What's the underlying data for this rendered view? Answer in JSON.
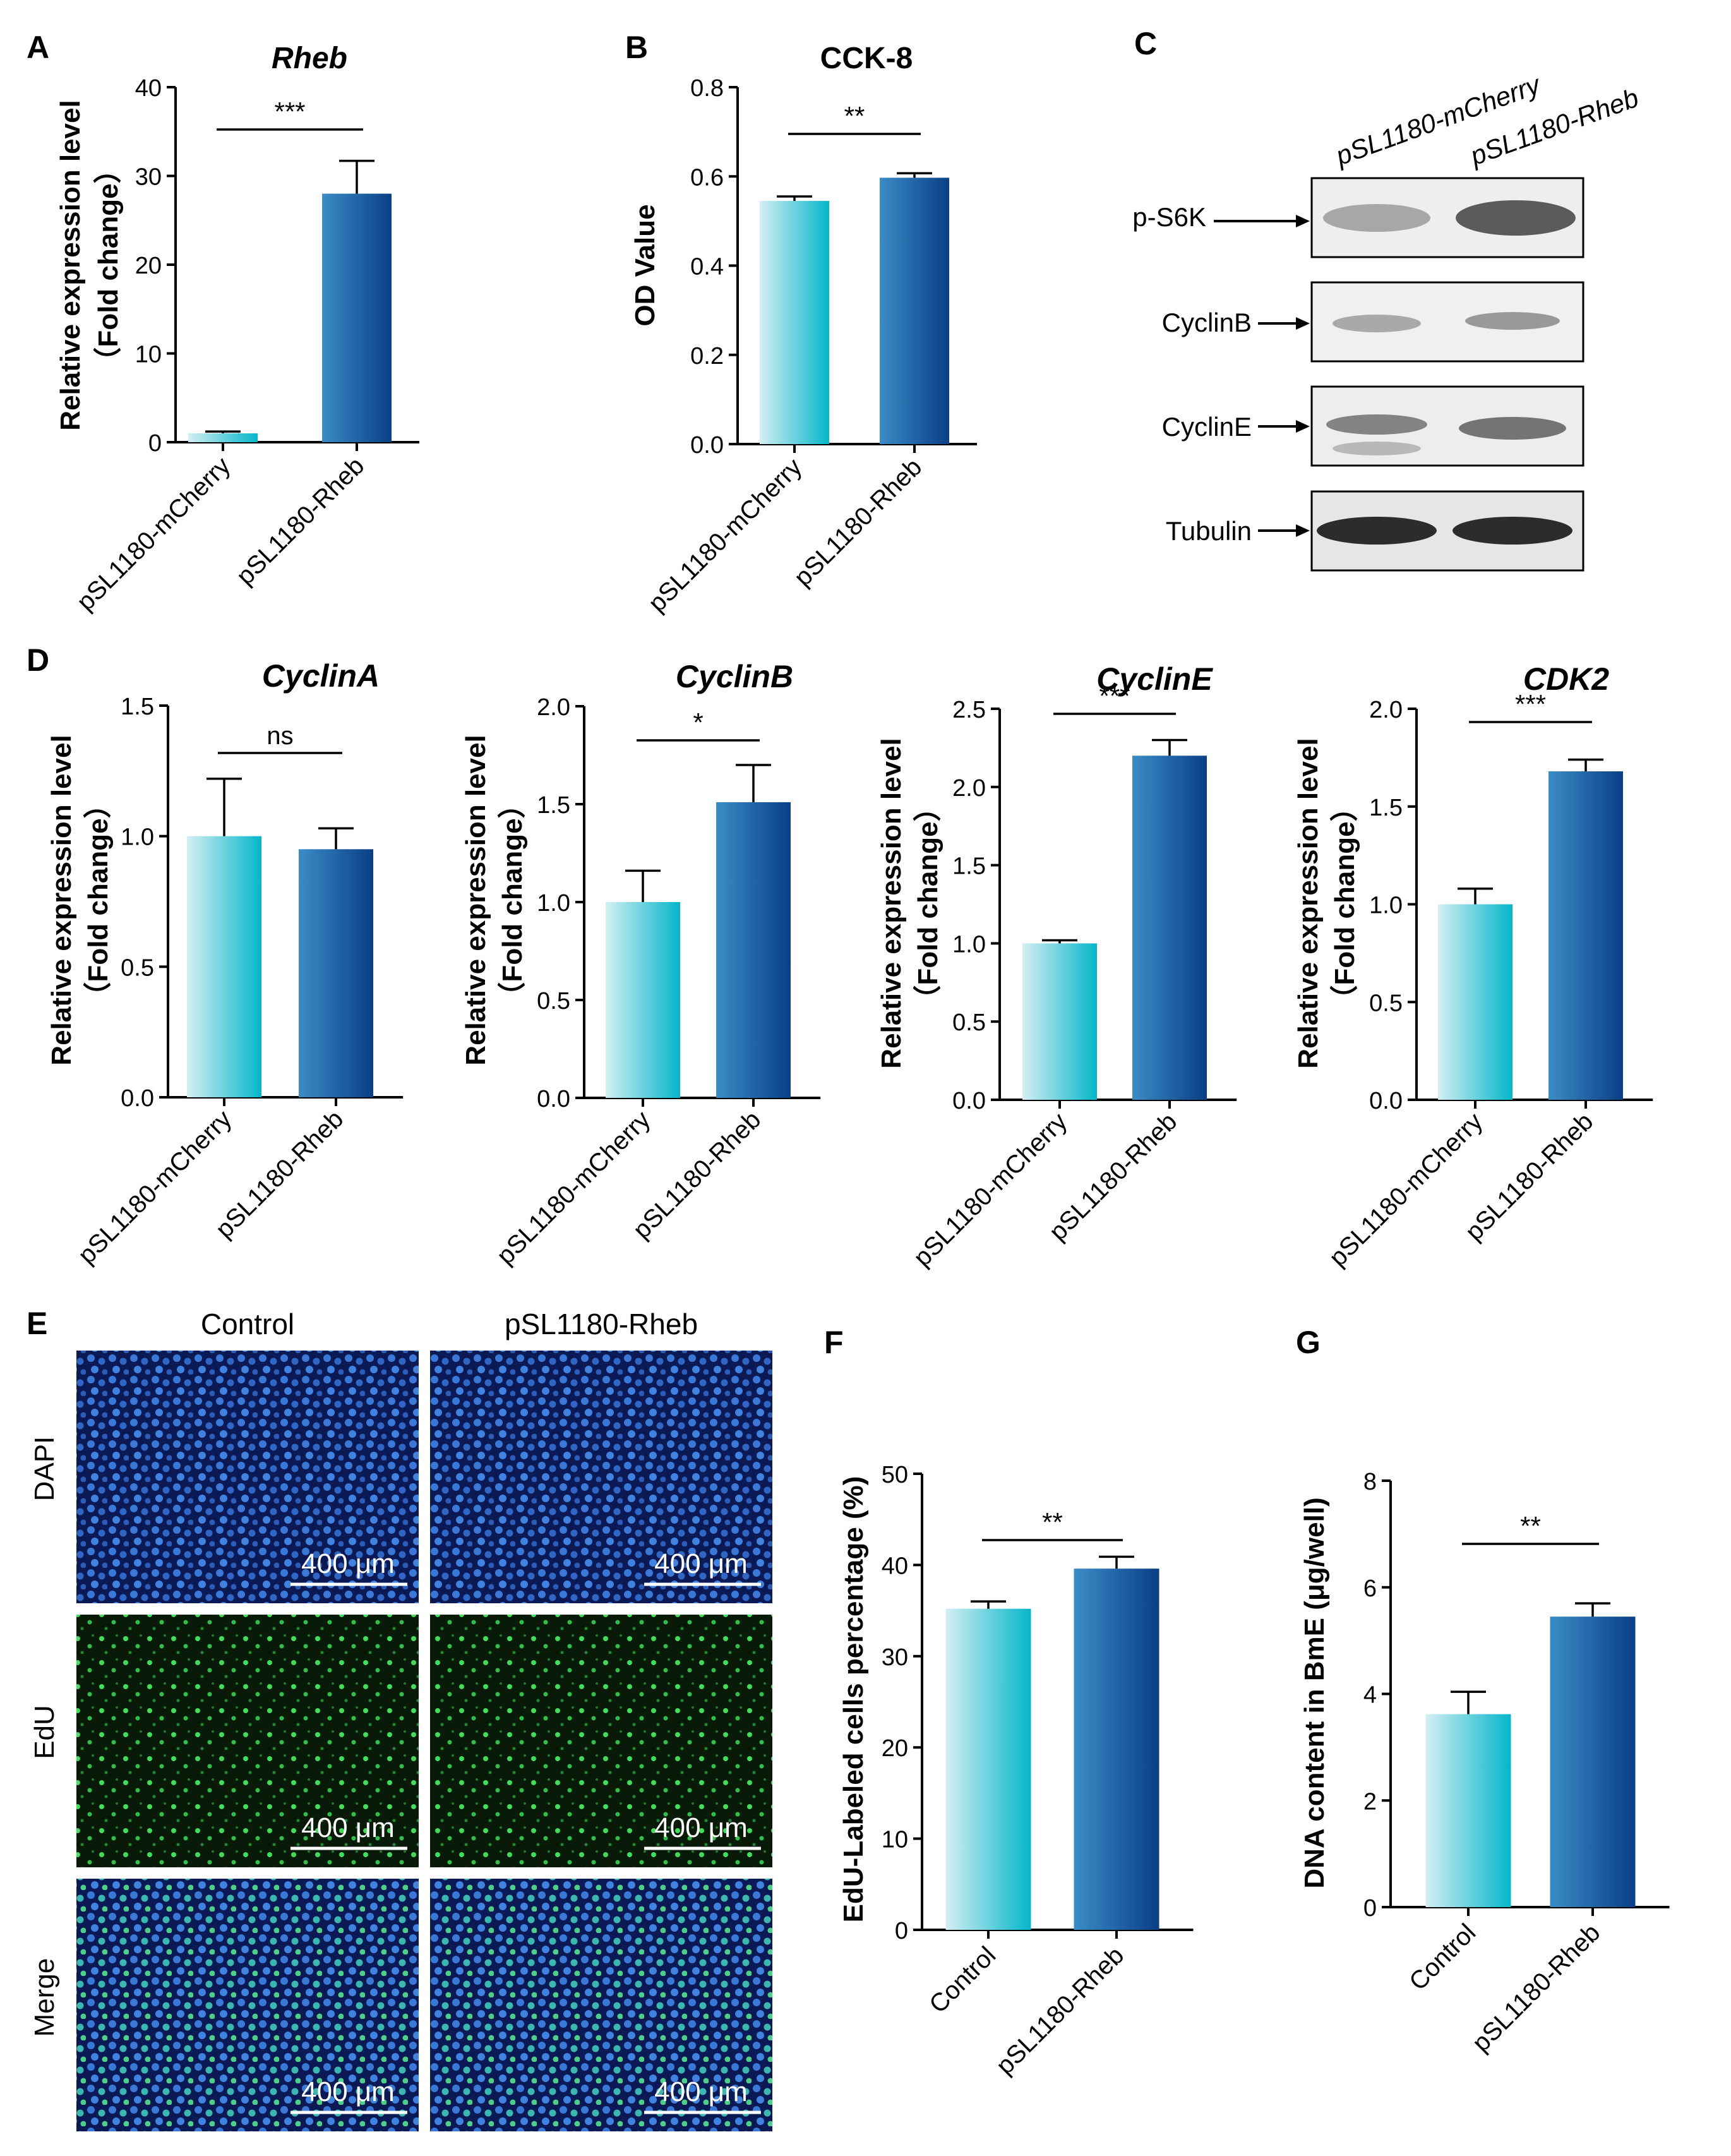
{
  "colors": {
    "light_bar_top": "#cdeef3",
    "light_bar_bottom": "#06b8cc",
    "dark_bar_top": "#2f82bd",
    "dark_bar_bottom": "#0a3f86",
    "axis": "#000000",
    "dapi_blue": "#2b66c4",
    "edu_green": "#2fd14a"
  },
  "panels": {
    "A": "A",
    "B": "B",
    "C": "C",
    "D": "D",
    "E": "E",
    "F": "F",
    "G": "G"
  },
  "chart_data": [
    {
      "id": "A",
      "type": "bar",
      "title": "Rheb",
      "ylabel": "Relative expression level",
      "ylabel2": "（Fold change）",
      "ylim": [
        0,
        40
      ],
      "ticks": [
        "0",
        "10",
        "20",
        "30",
        "40"
      ],
      "categories": [
        "pSL1180-mCherry",
        "pSL1180-Rheb"
      ],
      "values": [
        1,
        28
      ],
      "errors": [
        0.2,
        3.7
      ],
      "significance": "***"
    },
    {
      "id": "B",
      "type": "bar",
      "title": "CCK-8",
      "ylabel": "OD Value",
      "ylabel2": "",
      "ylim": [
        0,
        0.8
      ],
      "ticks": [
        "0.0",
        "0.2",
        "0.4",
        "0.6",
        "0.8"
      ],
      "categories": [
        "pSL1180-mCherry",
        "pSL1180-Rheb"
      ],
      "values": [
        0.545,
        0.597
      ],
      "errors": [
        0.01,
        0.01
      ],
      "significance": "**"
    },
    {
      "id": "D1",
      "type": "bar",
      "title": "CyclinA",
      "ylabel": "Relative expression level",
      "ylabel2": "（Fold change）",
      "ylim": [
        0,
        1.5
      ],
      "ticks": [
        "0.0",
        "0.5",
        "1.0",
        "1.5"
      ],
      "categories": [
        "pSL1180-mCherry",
        "pSL1180-Rheb"
      ],
      "values": [
        1.0,
        0.95
      ],
      "errors": [
        0.22,
        0.08
      ],
      "significance": "ns"
    },
    {
      "id": "D2",
      "type": "bar",
      "title": "CyclinB",
      "ylabel": "Relative expression level",
      "ylabel2": "（Fold change）",
      "ylim": [
        0,
        2.0
      ],
      "ticks": [
        "0.0",
        "0.5",
        "1.0",
        "1.5",
        "2.0"
      ],
      "categories": [
        "pSL1180-mCherry",
        "pSL1180-Rheb"
      ],
      "values": [
        1.0,
        1.51
      ],
      "errors": [
        0.16,
        0.19
      ],
      "significance": "*"
    },
    {
      "id": "D3",
      "type": "bar",
      "title": "CyclinE",
      "ylabel": "Relative expression level",
      "ylabel2": "（Fold change）",
      "ylim": [
        0,
        2.5
      ],
      "ticks": [
        "0.0",
        "0.5",
        "1.0",
        "1.5",
        "2.0",
        "2.5"
      ],
      "categories": [
        "pSL1180-mCherry",
        "pSL1180-Rheb"
      ],
      "values": [
        1.0,
        2.2
      ],
      "errors": [
        0.02,
        0.1
      ],
      "significance": "***"
    },
    {
      "id": "D4",
      "type": "bar",
      "title": "CDK2",
      "ylabel": "Relative expression level",
      "ylabel2": "（Fold change）",
      "ylim": [
        0,
        2.0
      ],
      "ticks": [
        "0.0",
        "0.5",
        "1.0",
        "1.5",
        "2.0"
      ],
      "categories": [
        "pSL1180-mCherry",
        "pSL1180-Rheb"
      ],
      "values": [
        1.0,
        1.68
      ],
      "errors": [
        0.08,
        0.06
      ],
      "significance": "***"
    },
    {
      "id": "F",
      "type": "bar",
      "title": "",
      "ylabel": "EdU-Labeled cells percentage (%)",
      "ylabel2": "",
      "ylim": [
        0,
        50
      ],
      "ticks": [
        "0",
        "10",
        "20",
        "30",
        "40",
        "50"
      ],
      "categories": [
        "Control",
        "pSL1180-Rheb"
      ],
      "values": [
        35.2,
        39.6
      ],
      "errors": [
        0.8,
        1.3
      ],
      "significance": "**"
    },
    {
      "id": "G",
      "type": "bar",
      "title": "",
      "ylabel": "DNA content in BmE (μg/well)",
      "ylabel2": "",
      "ylim": [
        0,
        8
      ],
      "ticks": [
        "0",
        "2",
        "4",
        "6",
        "8"
      ],
      "categories": [
        "Control",
        "pSL1180-Rheb"
      ],
      "values": [
        3.62,
        5.45
      ],
      "errors": [
        0.42,
        0.25
      ],
      "significance": "**"
    }
  ],
  "western": {
    "lanes": [
      "pSL1180-mCherry",
      "pSL1180-Rheb"
    ],
    "rows": [
      "p-S6K",
      "CyclinB",
      "CyclinE",
      "Tubulin"
    ]
  },
  "microscopy": {
    "columns": [
      "Control",
      "pSL1180-Rheb"
    ],
    "rows": [
      "DAPI",
      "EdU",
      "Merge"
    ],
    "scale_bar": "400 μm"
  }
}
